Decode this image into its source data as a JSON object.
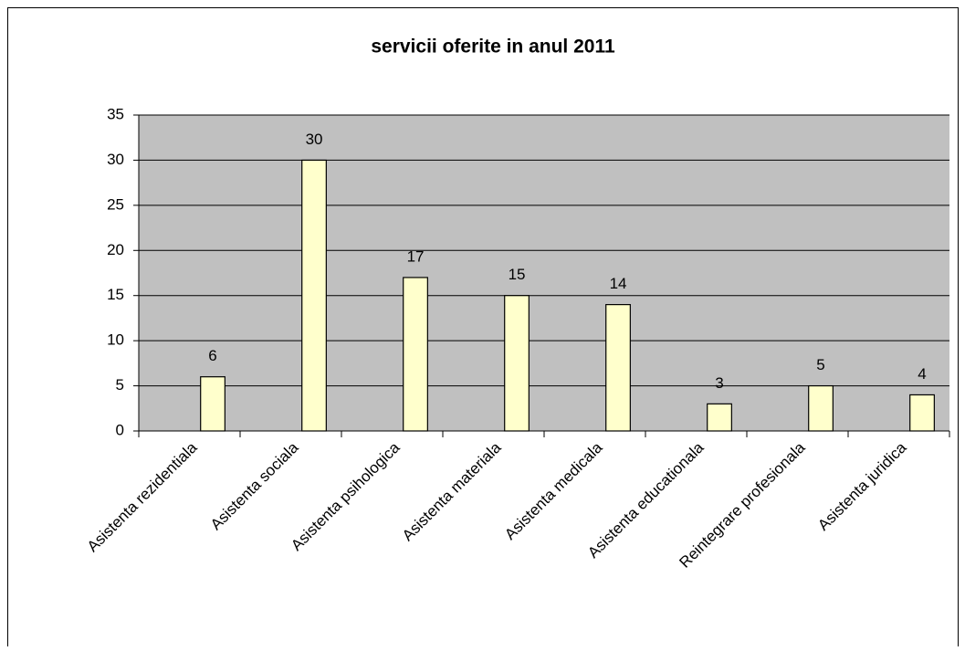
{
  "chart_data": {
    "type": "bar",
    "title": "servicii oferite in anul 2011",
    "categories": [
      "Asistenta rezidentiala",
      "Asistenta sociala",
      "Asistenta psihologica",
      "Asistenta materiala",
      "Asistenta medicala",
      "Asistenta educationala",
      "Reintegrare profesionala",
      "Asistenta juridica"
    ],
    "values": [
      6,
      30,
      17,
      15,
      14,
      3,
      5,
      4
    ],
    "color": "#ffffcc",
    "ylim": [
      0,
      35
    ],
    "yticks": [
      0,
      5,
      10,
      15,
      20,
      25,
      30,
      35
    ],
    "grid": true
  }
}
